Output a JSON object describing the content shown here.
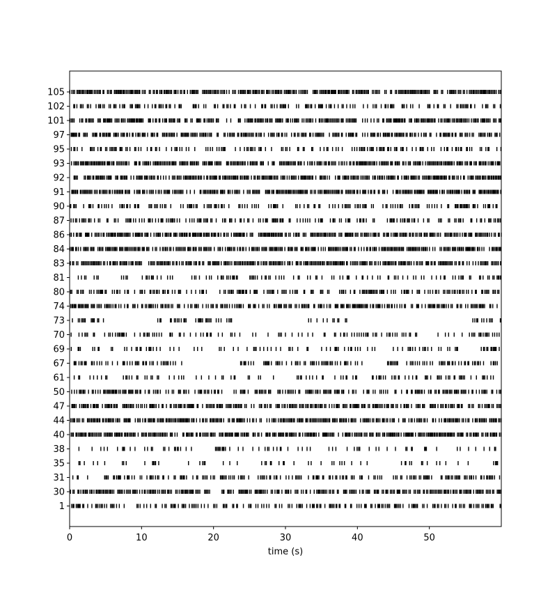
{
  "chart_data": {
    "type": "scatter",
    "subtype": "raster",
    "title": "",
    "xlabel": "time (s)",
    "ylabel": "",
    "xlim": [
      0,
      60
    ],
    "xticks": [
      0,
      10,
      20,
      30,
      40,
      50
    ],
    "grid": false,
    "mark_color": "#000000",
    "units": [
      {
        "label": "105",
        "active": [
          [
            0,
            60
          ]
        ],
        "density": 0.95
      },
      {
        "label": "102",
        "active": [
          [
            0,
            60
          ]
        ],
        "density": 0.55
      },
      {
        "label": "101",
        "active": [
          [
            0,
            60
          ]
        ],
        "density": 0.8
      },
      {
        "label": "97",
        "active": [
          [
            0,
            60
          ]
        ],
        "density": 0.85
      },
      {
        "label": "95",
        "active": [
          [
            0,
            60
          ]
        ],
        "density": 0.45
      },
      {
        "label": "93",
        "active": [
          [
            0,
            60
          ]
        ],
        "density": 0.95
      },
      {
        "label": "92",
        "active": [
          [
            0,
            60
          ]
        ],
        "density": 0.9
      },
      {
        "label": "91",
        "active": [
          [
            0,
            60
          ]
        ],
        "density": 0.95
      },
      {
        "label": "90",
        "active": [
          [
            0,
            60
          ]
        ],
        "density": 0.5
      },
      {
        "label": "87",
        "active": [
          [
            0,
            60
          ]
        ],
        "density": 0.55
      },
      {
        "label": "86",
        "active": [
          [
            0,
            60
          ]
        ],
        "density": 0.95
      },
      {
        "label": "84",
        "active": [
          [
            0,
            60
          ]
        ],
        "density": 0.95
      },
      {
        "label": "83",
        "active": [
          [
            0,
            60
          ]
        ],
        "density": 0.95
      },
      {
        "label": "81",
        "active": [
          [
            0,
            60
          ]
        ],
        "density": 0.35
      },
      {
        "label": "80",
        "active": [
          [
            0,
            60
          ]
        ],
        "density": 0.55
      },
      {
        "label": "74",
        "active": [
          [
            0,
            60
          ]
        ],
        "density": 0.75
      },
      {
        "label": "73",
        "active": [
          [
            0,
            5
          ],
          [
            11.5,
            22.5
          ],
          [
            33,
            38.5
          ],
          [
            56,
            60
          ]
        ],
        "density": 0.5
      },
      {
        "label": "70",
        "active": [
          [
            0,
            60
          ]
        ],
        "density": 0.35
      },
      {
        "label": "69",
        "active": [
          [
            0,
            60
          ]
        ],
        "density": 0.35
      },
      {
        "label": "67",
        "active": [
          [
            0,
            16
          ],
          [
            23.5,
            41
          ],
          [
            44,
            60
          ]
        ],
        "density": 0.6
      },
      {
        "label": "61",
        "active": [
          [
            0,
            60
          ]
        ],
        "density": 0.3
      },
      {
        "label": "50",
        "active": [
          [
            0,
            60
          ]
        ],
        "density": 0.65
      },
      {
        "label": "47",
        "active": [
          [
            0,
            60
          ]
        ],
        "density": 0.75
      },
      {
        "label": "44",
        "active": [
          [
            0,
            60
          ]
        ],
        "density": 0.9
      },
      {
        "label": "40",
        "active": [
          [
            0,
            60
          ]
        ],
        "density": 0.95
      },
      {
        "label": "38",
        "active": [
          [
            0,
            60
          ]
        ],
        "density": 0.25
      },
      {
        "label": "35",
        "active": [
          [
            0,
            60
          ]
        ],
        "density": 0.2
      },
      {
        "label": "31",
        "active": [
          [
            0,
            60
          ]
        ],
        "density": 0.5
      },
      {
        "label": "30",
        "active": [
          [
            0,
            60
          ]
        ],
        "density": 0.85
      },
      {
        "label": "1",
        "active": [
          [
            0,
            60
          ]
        ],
        "density": 0.6
      }
    ]
  }
}
